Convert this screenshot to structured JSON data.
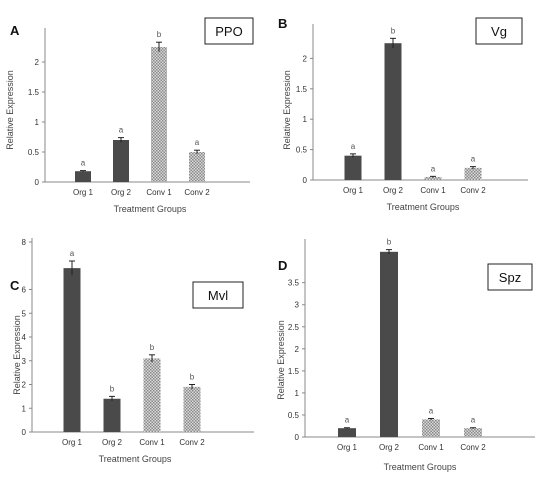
{
  "chart_data": [
    {
      "type": "bar",
      "panel": "A",
      "gene": "PPO",
      "categories": [
        "Org 1",
        "Org 2",
        "Conv 1",
        "Conv 2"
      ],
      "values": [
        0.18,
        0.7,
        2.25,
        0.5
      ],
      "errors": [
        0.01,
        0.04,
        0.08,
        0.03
      ],
      "significance": [
        "a",
        "a",
        "b",
        "a"
      ],
      "bar_styles": [
        "solid",
        "solid",
        "hatched",
        "hatched"
      ],
      "ylabel": "Relative Expression",
      "xlabel": "Treatment Groups",
      "ylim": [
        0,
        2.5
      ],
      "yticks": [
        "0",
        "0.5",
        "1",
        "1.5",
        "2"
      ],
      "yticks_values": [
        0,
        0.5,
        1,
        1.5,
        2
      ]
    },
    {
      "type": "bar",
      "panel": "B",
      "gene": "Vg",
      "categories": [
        "Org 1",
        "Org 2",
        "Conv 1",
        "Conv 2"
      ],
      "values": [
        0.4,
        2.25,
        0.05,
        0.2
      ],
      "errors": [
        0.03,
        0.08,
        0.01,
        0.02
      ],
      "significance": [
        "a",
        "b",
        "a",
        "a"
      ],
      "bar_styles": [
        "solid",
        "solid",
        "hatched",
        "hatched"
      ],
      "ylabel": "Relative Expression",
      "xlabel": "Treatment Groups",
      "ylim": [
        0,
        2.5
      ],
      "yticks": [
        "0",
        "0.5",
        "1",
        "1.5",
        "2"
      ],
      "yticks_values": [
        0,
        0.5,
        1,
        1.5,
        2
      ]
    },
    {
      "type": "bar",
      "panel": "C",
      "gene": "Mvl",
      "categories": [
        "Org 1",
        "Org 2",
        "Conv 1",
        "Conv 2"
      ],
      "values": [
        6.9,
        1.4,
        3.1,
        1.9
      ],
      "errors": [
        0.3,
        0.1,
        0.15,
        0.1
      ],
      "significance": [
        "a",
        "b",
        "b",
        "b"
      ],
      "bar_styles": [
        "solid",
        "solid",
        "hatched",
        "hatched"
      ],
      "ylabel": "Relative Expression",
      "xlabel": "Treatment Groups",
      "ylim": [
        0,
        8
      ],
      "yticks": [
        "0",
        "1",
        "2",
        "3",
        "4",
        "5",
        "6",
        "8"
      ],
      "yticks_values": [
        0,
        1,
        2,
        3,
        4,
        5,
        6,
        8
      ]
    },
    {
      "type": "bar",
      "panel": "D",
      "gene": "Spz",
      "categories": [
        "Org 1",
        "Org 2",
        "Conv 1",
        "Conv 2"
      ],
      "values": [
        0.2,
        4.2,
        0.4,
        0.2
      ],
      "errors": [
        0.01,
        0.05,
        0.02,
        0.01
      ],
      "significance": [
        "a",
        "b",
        "a",
        "a"
      ],
      "bar_styles": [
        "solid",
        "solid",
        "hatched",
        "hatched"
      ],
      "ylabel": "Relative Expression",
      "xlabel": "Treatment Groups",
      "ylim": [
        0,
        4.4
      ],
      "yticks": [
        "0",
        "0.5",
        "1",
        "1.5",
        "2",
        "2.5",
        "3",
        "3.5"
      ],
      "yticks_values": [
        0,
        0.5,
        1,
        1.5,
        2,
        2.5,
        3,
        3.5
      ]
    }
  ],
  "colors": {
    "solid_bar": "#4a4a4a",
    "hatched_bar": "#a8a8a8",
    "axis": "#888888"
  }
}
